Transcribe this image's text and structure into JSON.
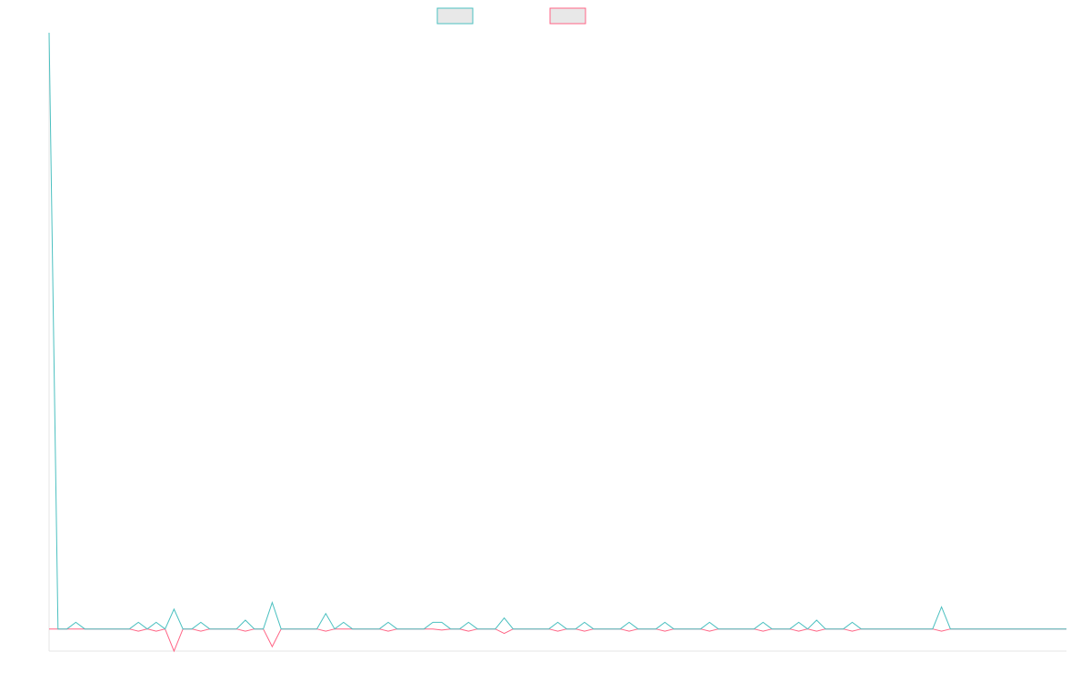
{
  "chart_data": {
    "type": "line",
    "title": "",
    "xlabel": "",
    "ylabel": "",
    "grid": false,
    "legend_position": "top-center",
    "ylim": [
      -1,
      27
    ],
    "x": [
      0,
      1,
      2,
      3,
      4,
      5,
      6,
      7,
      8,
      9,
      10,
      11,
      12,
      13,
      14,
      15,
      16,
      17,
      18,
      19,
      20,
      21,
      22,
      23,
      24,
      25,
      26,
      27,
      28,
      29,
      30,
      31,
      32,
      33,
      34,
      35,
      36,
      37,
      38,
      39,
      40,
      41,
      42,
      43,
      44,
      45,
      46,
      47,
      48,
      49,
      50,
      51,
      52,
      53,
      54,
      55,
      56,
      57,
      58,
      59,
      60,
      61,
      62,
      63,
      64,
      65,
      66,
      67,
      68,
      69,
      70,
      71,
      72,
      73,
      74,
      75,
      76,
      77,
      78,
      79,
      80,
      81,
      82,
      83,
      84,
      85,
      86,
      87,
      88,
      89,
      90,
      91,
      92,
      93,
      94,
      95,
      96,
      97,
      98,
      99,
      100,
      101,
      102,
      103,
      104,
      105,
      106,
      107,
      108,
      109,
      110,
      111,
      112,
      113,
      114
    ],
    "series": [
      {
        "color": "#4bc0c0",
        "values": [
          27,
          0,
          0,
          0.3,
          0,
          0,
          0,
          0,
          0,
          0,
          0.3,
          0,
          0.3,
          0,
          0.9,
          0,
          0,
          0.3,
          0,
          0,
          0,
          0,
          0.4,
          0,
          0,
          1.2,
          0,
          0,
          0,
          0,
          0,
          0.7,
          0,
          0.3,
          0,
          0,
          0,
          0,
          0.3,
          0,
          0,
          0,
          0,
          0.3,
          0.3,
          0,
          0,
          0.3,
          0,
          0,
          0,
          0.5,
          0,
          0,
          0,
          0,
          0,
          0.3,
          0,
          0,
          0.3,
          0,
          0,
          0,
          0,
          0.3,
          0,
          0,
          0,
          0.3,
          0,
          0,
          0,
          0,
          0.3,
          0,
          0,
          0,
          0,
          0,
          0.3,
          0,
          0,
          0,
          0.3,
          0,
          0.4,
          0,
          0,
          0,
          0.3,
          0,
          0,
          0,
          0,
          0,
          0,
          0,
          0,
          0,
          1.0,
          0,
          0,
          0,
          0,
          0,
          0,
          0,
          0,
          0,
          0,
          0,
          0,
          0,
          0
        ]
      },
      {
        "color": "#ff6384",
        "values": [
          0,
          0,
          0,
          0,
          0,
          0,
          0,
          0,
          0,
          0,
          -0.1,
          0,
          -0.1,
          0,
          -1.0,
          0,
          0,
          -0.1,
          0,
          0,
          0,
          0,
          -0.1,
          0,
          0,
          -0.8,
          0,
          0,
          0,
          0,
          0,
          -0.1,
          0,
          0,
          0,
          0,
          0,
          0,
          -0.1,
          0,
          0,
          0,
          0,
          0,
          -0.05,
          0,
          0,
          -0.1,
          0,
          0,
          0,
          -0.2,
          0,
          0,
          0,
          0,
          0,
          -0.1,
          0,
          0,
          -0.1,
          0,
          0,
          0,
          0,
          -0.1,
          0,
          0,
          0,
          -0.1,
          0,
          0,
          0,
          0,
          -0.1,
          0,
          0,
          0,
          0,
          0,
          -0.1,
          0,
          0,
          0,
          -0.1,
          0,
          -0.1,
          0,
          0,
          0,
          -0.1,
          0,
          0,
          0,
          0,
          0,
          0,
          0,
          0,
          0,
          -0.1,
          0,
          0,
          0,
          0,
          0,
          0,
          0,
          0,
          0,
          0,
          0,
          0,
          0,
          0
        ]
      }
    ]
  }
}
